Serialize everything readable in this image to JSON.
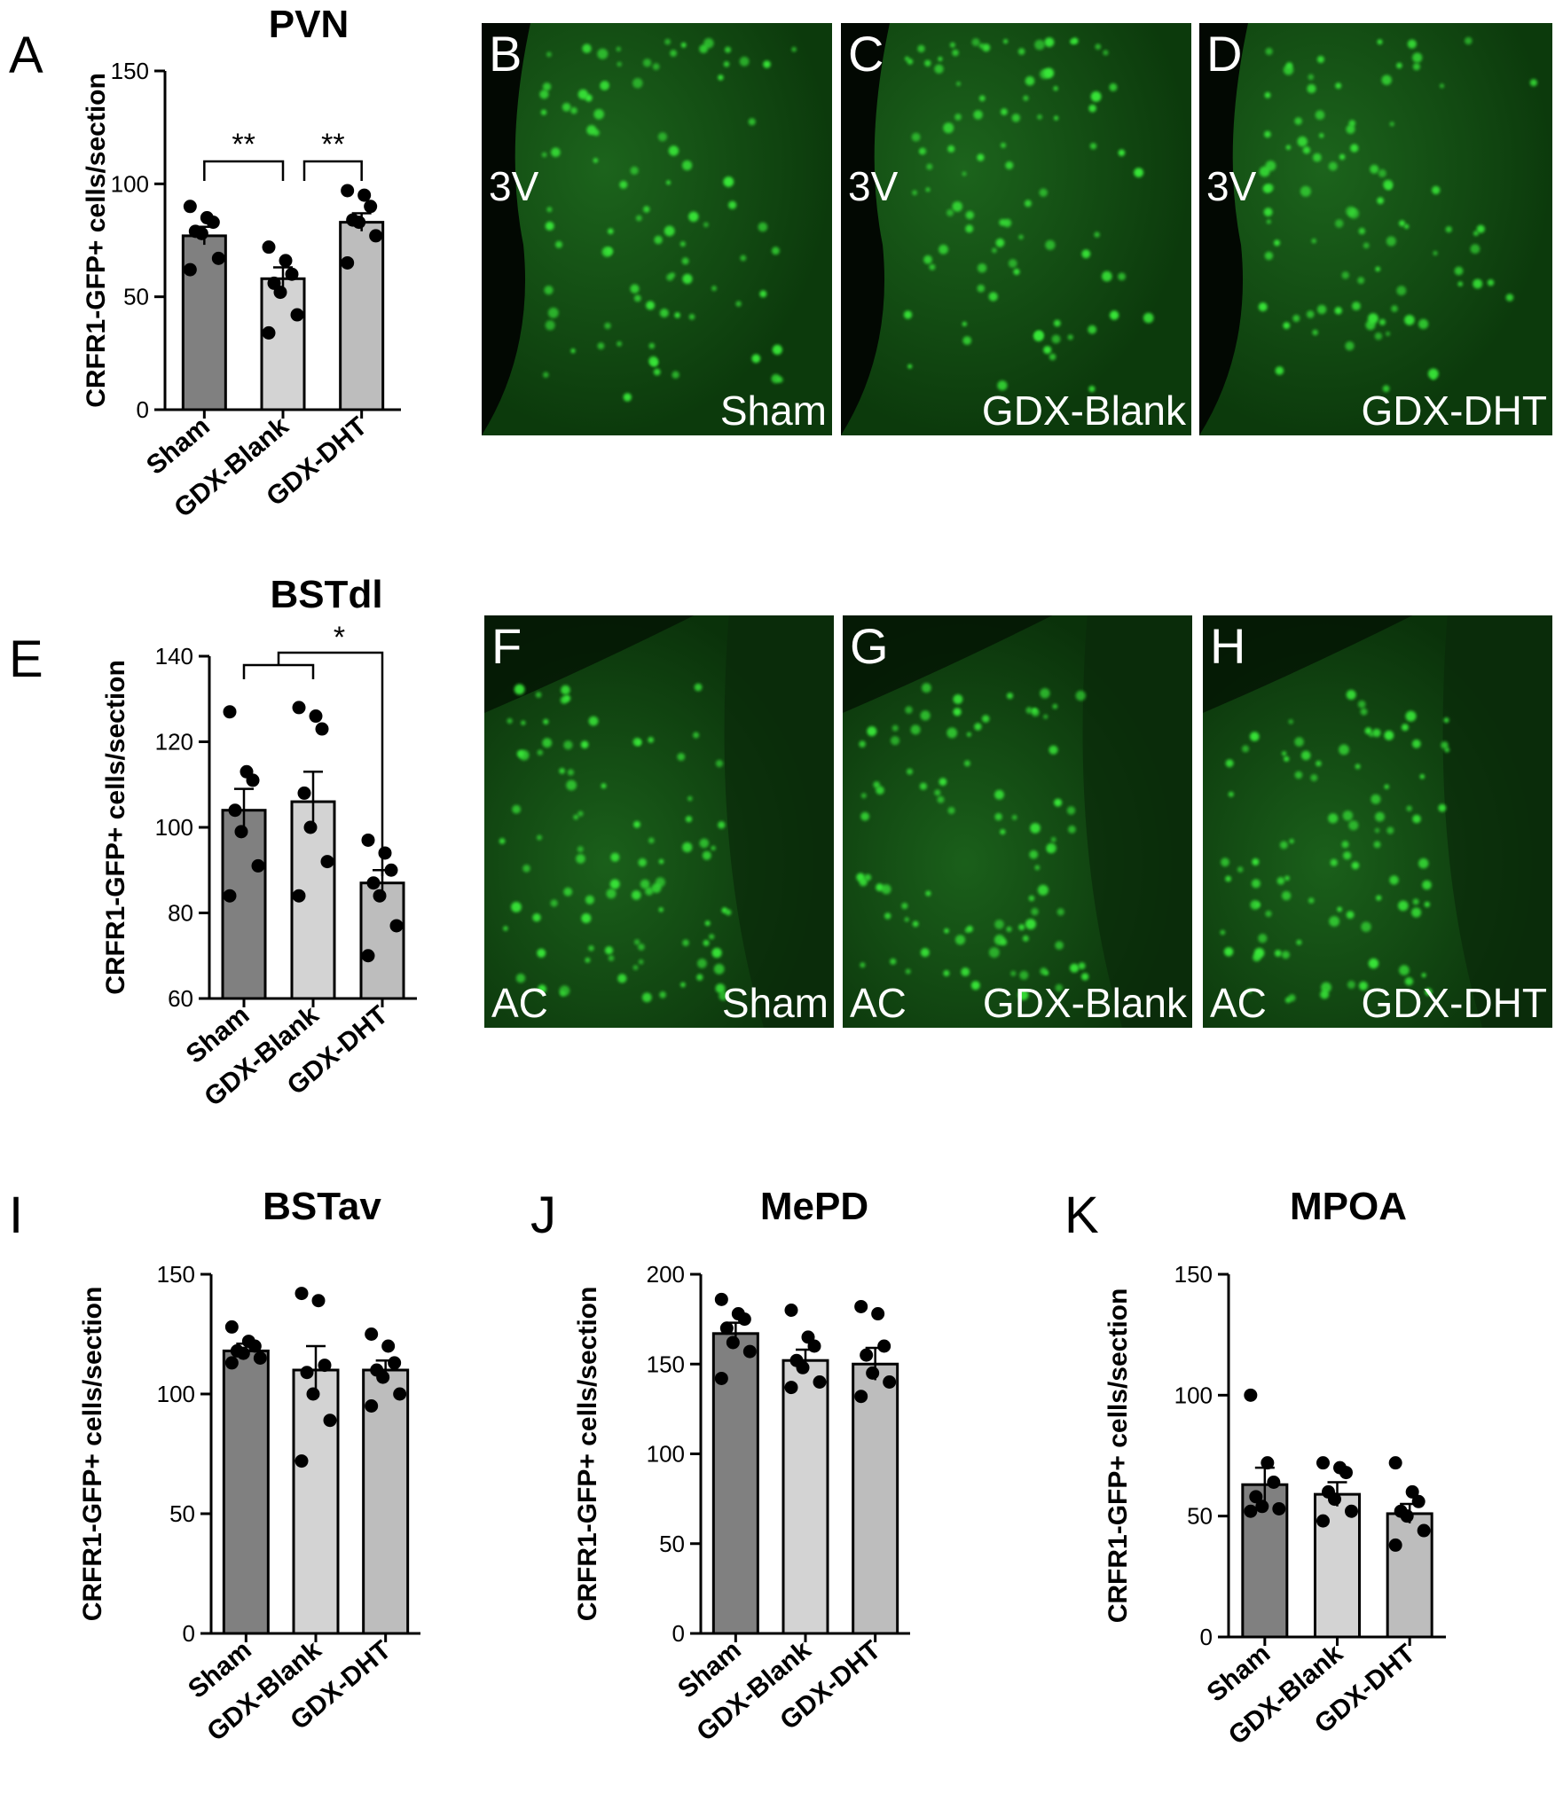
{
  "chart_data": [
    {
      "panel": "A",
      "type": "bar",
      "title": "PVN",
      "ylabel": "CRFR1-GFP+ cells/section",
      "categories": [
        "Sham",
        "GDX-Blank",
        "GDX-DHT"
      ],
      "values": [
        77,
        58,
        83
      ],
      "sem": [
        4,
        5,
        4
      ],
      "points": [
        [
          90,
          85,
          83,
          79,
          78,
          67,
          62
        ],
        [
          72,
          66,
          60,
          56,
          52,
          42,
          34
        ],
        [
          97,
          95,
          90,
          84,
          83,
          77,
          65
        ]
      ],
      "ylim": [
        0,
        150
      ],
      "yticks": [
        0,
        50,
        100,
        150
      ],
      "tick_labels": [
        "0",
        "50",
        "100",
        "150"
      ],
      "significance": [
        {
          "from": 0,
          "to": 1,
          "label": "**"
        },
        {
          "from": 1,
          "to": 2,
          "label": "**"
        }
      ],
      "bar_colors": [
        "#808080",
        "#d3d3d3",
        "#bdbdbd"
      ]
    },
    {
      "panel": "E",
      "type": "bar",
      "title": "BSTdl",
      "ylabel": "CRFR1-GFP+ cells/section",
      "categories": [
        "Sham",
        "GDX-Blank",
        "GDX-DHT"
      ],
      "values": [
        104,
        106,
        87
      ],
      "sem": [
        5,
        7,
        3
      ],
      "points": [
        [
          127,
          113,
          111,
          104,
          99,
          91,
          84
        ],
        [
          128,
          126,
          123,
          108,
          100,
          92,
          84
        ],
        [
          97,
          94,
          90,
          87,
          84,
          77,
          70
        ]
      ],
      "ylim": [
        60,
        140
      ],
      "yticks": [
        60,
        80,
        100,
        120,
        140
      ],
      "tick_labels": [
        "60",
        "80",
        "100",
        "120",
        "140"
      ],
      "significance": [
        {
          "from": [
            0,
            1
          ],
          "to": 2,
          "label": "*"
        }
      ],
      "bar_colors": [
        "#808080",
        "#d3d3d3",
        "#bdbdbd"
      ]
    },
    {
      "panel": "I",
      "type": "bar",
      "title": "BSTav",
      "ylabel": "CRFR1-GFP+ cells/section",
      "categories": [
        "Sham",
        "GDX-Blank",
        "GDX-DHT"
      ],
      "values": [
        118,
        110,
        110
      ],
      "sem": [
        3,
        10,
        4
      ],
      "points": [
        [
          128,
          122,
          120,
          118,
          117,
          115,
          113
        ],
        [
          142,
          139,
          112,
          109,
          100,
          89,
          72
        ],
        [
          125,
          120,
          113,
          110,
          107,
          100,
          95
        ]
      ],
      "ylim": [
        0,
        150
      ],
      "yticks": [
        0,
        50,
        100,
        150
      ],
      "tick_labels": [
        "0",
        "50",
        "100",
        "150"
      ],
      "bar_colors": [
        "#808080",
        "#d3d3d3",
        "#bdbdbd"
      ]
    },
    {
      "panel": "J",
      "type": "bar",
      "title": "MePD",
      "ylabel": "CRFR1-GFP+ cells/section",
      "categories": [
        "Sham",
        "GDX-Blank",
        "GDX-DHT"
      ],
      "values": [
        167,
        152,
        150
      ],
      "sem": [
        6,
        6,
        9
      ],
      "points": [
        [
          186,
          178,
          175,
          170,
          162,
          157,
          142
        ],
        [
          180,
          165,
          160,
          152,
          148,
          140,
          137
        ],
        [
          182,
          178,
          160,
          155,
          145,
          140,
          132
        ]
      ],
      "ylim": [
        0,
        200
      ],
      "yticks": [
        0,
        50,
        100,
        150,
        200
      ],
      "tick_labels": [
        "0",
        "50",
        "100",
        "150",
        "200"
      ],
      "bar_colors": [
        "#808080",
        "#d3d3d3",
        "#bdbdbd"
      ]
    },
    {
      "panel": "K",
      "type": "bar",
      "title": "MPOA",
      "ylabel": "CRFR1-GFP+ cells/section",
      "categories": [
        "Sham",
        "GDX-Blank",
        "GDX-DHT"
      ],
      "values": [
        63,
        59,
        51
      ],
      "sem": [
        7,
        5,
        4
      ],
      "points": [
        [
          100,
          72,
          64,
          58,
          54,
          53,
          52
        ],
        [
          72,
          70,
          68,
          60,
          57,
          52,
          48
        ],
        [
          72,
          60,
          56,
          52,
          50,
          44,
          38
        ]
      ],
      "ylim": [
        0,
        150
      ],
      "yticks": [
        0,
        50,
        100,
        150
      ],
      "tick_labels": [
        "0",
        "50",
        "100",
        "150"
      ],
      "bar_colors": [
        "#808080",
        "#d3d3d3",
        "#bdbdbd"
      ]
    }
  ],
  "panel_letters": [
    "A",
    "E",
    "I",
    "J",
    "K"
  ],
  "micrographs": [
    {
      "letter": "B",
      "region_label": "3V",
      "group_label": "Sham"
    },
    {
      "letter": "C",
      "region_label": "3V",
      "group_label": "GDX-Blank"
    },
    {
      "letter": "D",
      "region_label": "3V",
      "group_label": "GDX-DHT"
    },
    {
      "letter": "F",
      "region_label": "AC",
      "group_label": "Sham"
    },
    {
      "letter": "G",
      "region_label": "AC",
      "group_label": "GDX-Blank"
    },
    {
      "letter": "H",
      "region_label": "AC",
      "group_label": "GDX-DHT"
    }
  ],
  "colors": {
    "micrograph_background": "#0b3a0b",
    "cell_fluorescence": "#39e639"
  }
}
